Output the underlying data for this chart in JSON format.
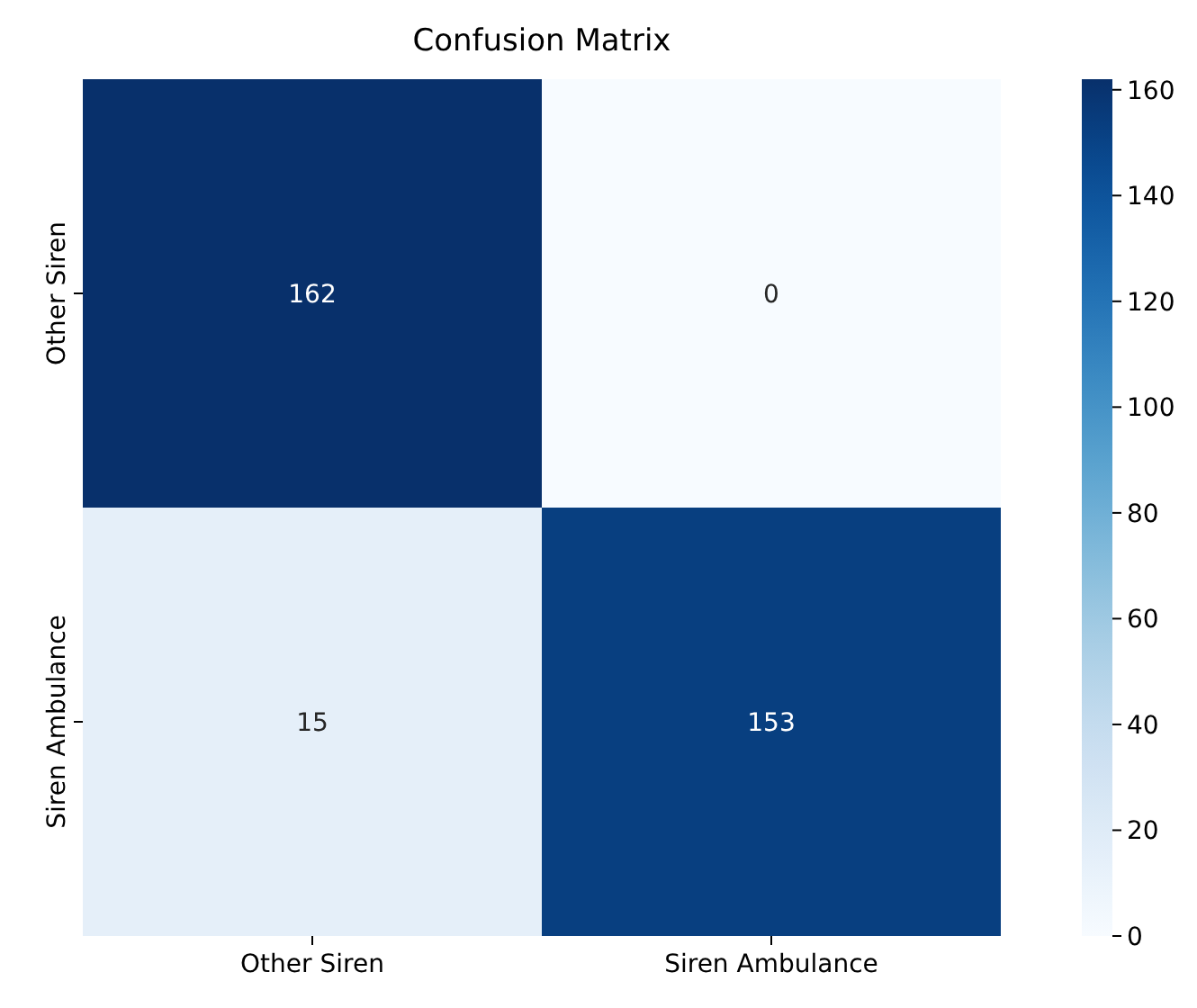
{
  "chart_data": {
    "type": "heatmap",
    "title": "Confusion Matrix",
    "categories": [
      "Other Siren",
      "Siren Ambulance"
    ],
    "y_categories": [
      "Other Siren",
      "Siren Ambulance"
    ],
    "cells": [
      [
        162,
        0
      ],
      [
        15,
        153
      ]
    ],
    "data_labels": true,
    "clim": [
      0,
      162
    ],
    "cticks": [
      0,
      20,
      40,
      60,
      80,
      100,
      120,
      140,
      160
    ]
  }
}
